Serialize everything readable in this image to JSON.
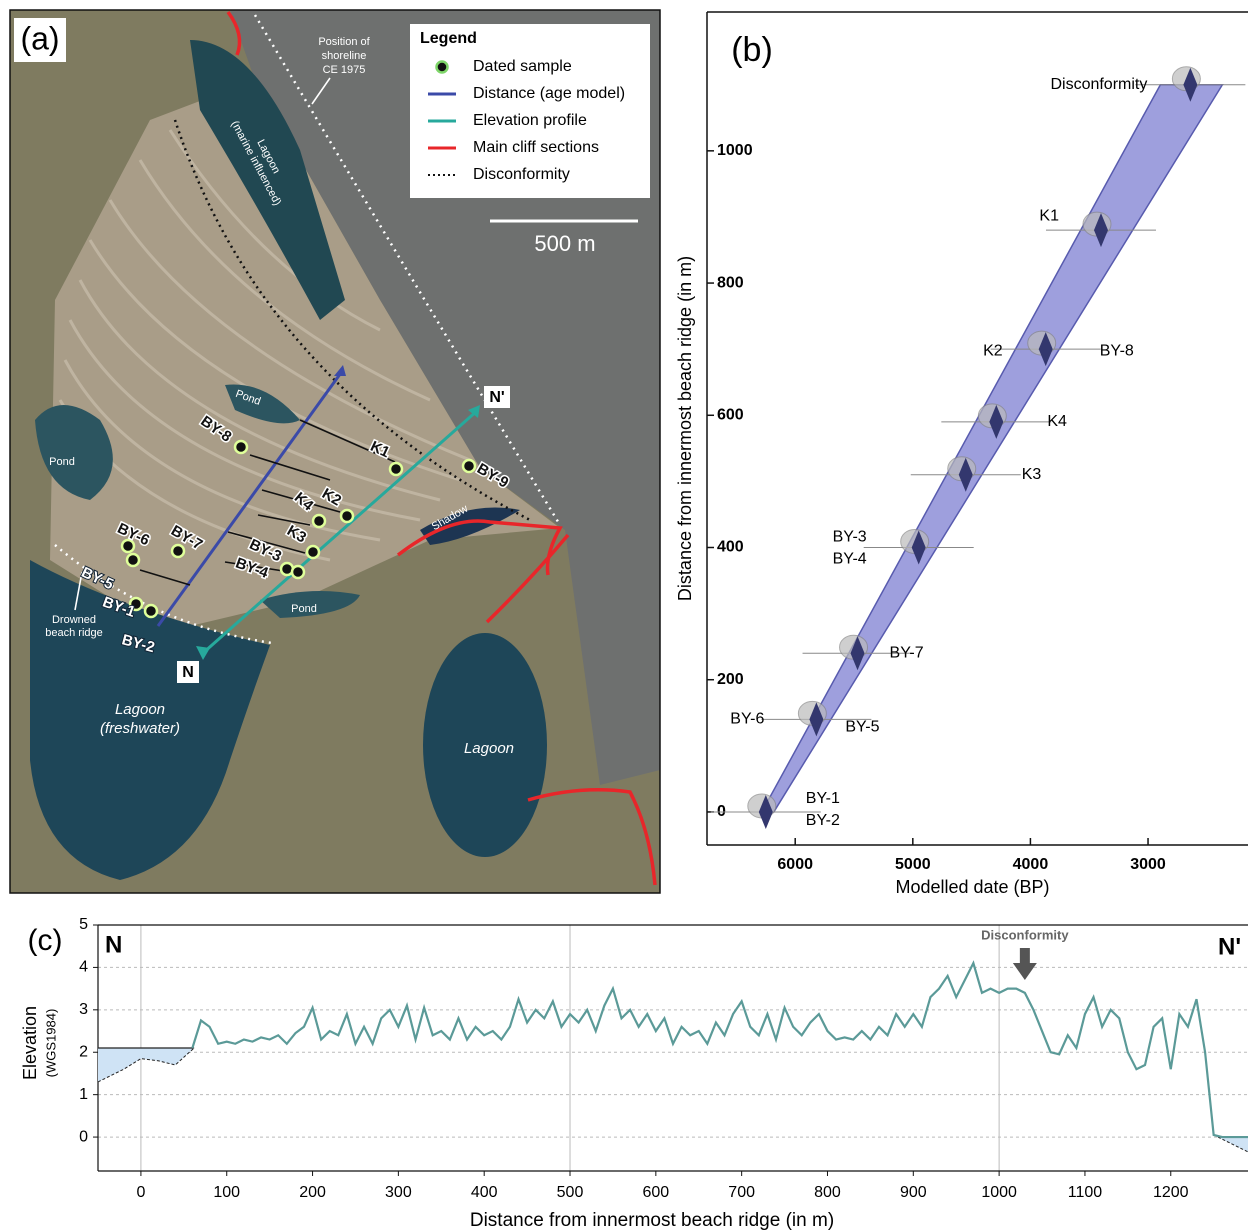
{
  "map": {
    "label": "(a)",
    "legend_title": "Legend",
    "legend": [
      "Dated sample",
      "Distance (age model)",
      "Elevation profile",
      "Main cliff sections",
      "Disconformity"
    ],
    "scale_bar": "500 m",
    "shoreline_note": [
      "Position of",
      "shoreline",
      "CE 1975"
    ],
    "marine_lagoon": [
      "Lagoon",
      "(marine influenced)"
    ],
    "freshwater_lagoon": [
      "Lagoon",
      "(freshwater)"
    ],
    "lagoon": "Lagoon",
    "ponds": [
      "Pond",
      "Pond",
      "Pond"
    ],
    "shadow": "Shadow",
    "drowned_ridge": [
      "Drowned",
      "beach ridge"
    ],
    "profile_ends": [
      "N",
      "N'"
    ],
    "samples": [
      "BY-1",
      "BY-2",
      "BY-3",
      "BY-4",
      "BY-5",
      "BY-6",
      "BY-7",
      "BY-8",
      "BY-9",
      "K1",
      "K2",
      "K3",
      "K4"
    ]
  },
  "chart_data": [
    {
      "type": "scatter",
      "label": "(b)",
      "xlabel": "Modelled date (BP)",
      "ylabel": "Distance from innermost beach ridge (in m)",
      "x": [
        6250,
        5820,
        5470,
        4950,
        4550,
        4290,
        3870,
        3400,
        2640
      ],
      "values": [
        0,
        140,
        240,
        400,
        510,
        590,
        700,
        880,
        1100
      ],
      "point_labels": [
        [
          "BY-1",
          "BY-2"
        ],
        [
          "BY-6",
          "BY-5"
        ],
        [
          "BY-7"
        ],
        [
          "BY-3",
          "BY-4"
        ],
        [
          "K3"
        ],
        [
          "K4"
        ],
        [
          "K2",
          "BY-8"
        ],
        [
          "K1"
        ],
        [
          "Disconformity"
        ]
      ],
      "color": "#33376e",
      "band_color": "#8e8fd8",
      "xlim": [
        6750,
        2150
      ],
      "ylim": [
        -50,
        1210
      ],
      "xticks": [
        6000,
        5000,
        4000,
        3000
      ],
      "yticks": [
        0,
        200,
        400,
        600,
        800,
        1000
      ]
    },
    {
      "type": "line",
      "label": "(c)",
      "xlabel": "Distance from innermost beach ridge (in m)",
      "ylabel": [
        "Elevation",
        "(WGS1984)"
      ],
      "end_labels": [
        "N",
        "N'"
      ],
      "annotation": {
        "text": "Disconformity",
        "x": 1030
      },
      "x": [
        60,
        70,
        80,
        90,
        100,
        110,
        120,
        130,
        140,
        150,
        160,
        170,
        180,
        190,
        200,
        210,
        220,
        230,
        240,
        250,
        260,
        270,
        280,
        290,
        300,
        310,
        320,
        330,
        340,
        350,
        360,
        370,
        380,
        390,
        400,
        410,
        420,
        430,
        440,
        450,
        460,
        470,
        480,
        490,
        500,
        510,
        520,
        530,
        540,
        550,
        560,
        570,
        580,
        590,
        600,
        610,
        620,
        630,
        640,
        650,
        660,
        670,
        680,
        690,
        700,
        710,
        720,
        730,
        740,
        750,
        760,
        770,
        780,
        790,
        800,
        810,
        820,
        830,
        840,
        850,
        860,
        870,
        880,
        890,
        900,
        910,
        920,
        930,
        940,
        950,
        960,
        970,
        980,
        990,
        1000,
        1010,
        1020,
        1030,
        1040,
        1050,
        1060,
        1070,
        1080,
        1090,
        1100,
        1110,
        1120,
        1130,
        1140,
        1150,
        1160,
        1170,
        1180,
        1190,
        1200,
        1210,
        1220,
        1230,
        1240,
        1250,
        1260,
        1270,
        1280,
        1290
      ],
      "values": [
        2.1,
        2.75,
        2.6,
        2.2,
        2.25,
        2.2,
        2.3,
        2.25,
        2.35,
        2.3,
        2.4,
        2.2,
        2.45,
        2.6,
        3.05,
        2.3,
        2.5,
        2.4,
        2.9,
        2.2,
        2.6,
        2.2,
        2.8,
        3.0,
        2.6,
        3.1,
        2.3,
        3.05,
        2.4,
        2.5,
        2.3,
        2.8,
        2.3,
        2.6,
        2.4,
        2.5,
        2.3,
        2.6,
        3.25,
        2.7,
        3.0,
        2.8,
        3.2,
        2.6,
        2.9,
        2.7,
        3.0,
        2.5,
        3.1,
        3.5,
        2.8,
        3.0,
        2.6,
        2.9,
        2.5,
        2.8,
        2.2,
        2.6,
        2.4,
        2.5,
        2.2,
        2.7,
        2.4,
        2.9,
        3.2,
        2.6,
        2.4,
        2.9,
        2.3,
        3.05,
        2.6,
        2.4,
        2.7,
        2.9,
        2.5,
        2.3,
        2.35,
        2.3,
        2.5,
        2.3,
        2.6,
        2.4,
        2.9,
        2.6,
        2.9,
        2.6,
        3.3,
        3.5,
        3.8,
        3.3,
        3.7,
        4.1,
        3.4,
        3.5,
        3.4,
        3.5,
        3.5,
        3.4,
        3.0,
        2.5,
        2.0,
        1.95,
        2.4,
        2.1,
        2.9,
        3.3,
        2.6,
        3.0,
        2.8,
        2.0,
        1.6,
        1.7,
        2.6,
        2.8,
        1.6,
        2.9,
        2.6,
        3.25,
        2.0,
        0.05,
        0,
        0,
        0,
        0
      ],
      "color": "#5b9a98",
      "water_color": "#cfe3f5",
      "water": [
        {
          "level": 2.1,
          "x": [
            -50,
            -20,
            0,
            20,
            40,
            62
          ],
          "values": [
            1.3,
            1.6,
            1.85,
            1.8,
            1.7,
            2.1
          ]
        },
        {
          "level": 0,
          "x": [
            1255,
            1290
          ],
          "values": [
            0,
            -0.35
          ]
        }
      ],
      "xlim": [
        -50,
        1290
      ],
      "ylim": [
        -0.8,
        5
      ],
      "xticks": [
        0,
        100,
        200,
        300,
        400,
        500,
        600,
        700,
        800,
        900,
        1000,
        1100,
        1200
      ],
      "yticks": [
        0,
        1,
        2,
        3,
        4,
        5
      ],
      "vlines": [
        0,
        500,
        1000
      ],
      "grid": true
    }
  ]
}
